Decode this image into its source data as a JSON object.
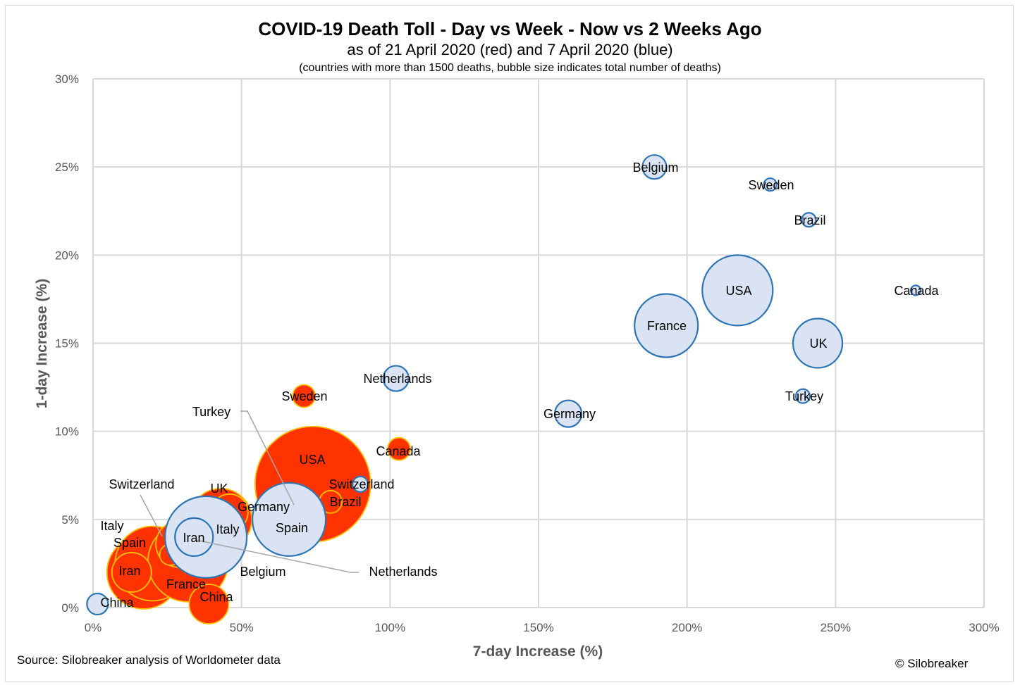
{
  "chart_data": {
    "type": "bubble",
    "title": "COVID-19 Death Toll - Day vs Week - Now vs 2 Weeks Ago",
    "subtitle": "as of 21 April 2020 (red) and 7 April 2020 (blue)",
    "note": "(countries with more than 1500 deaths, bubble size indicates total number of deaths)",
    "xlabel": "7-day Increase (%)",
    "ylabel": "1-day Increase (%)",
    "xlim": [
      0,
      300
    ],
    "ylim": [
      0,
      30
    ],
    "x_ticks": [
      0,
      50,
      100,
      150,
      200,
      250,
      300
    ],
    "y_ticks": [
      0,
      5,
      10,
      15,
      20,
      25,
      30
    ],
    "x_tick_labels": [
      "0%",
      "50%",
      "100%",
      "150%",
      "200%",
      "250%",
      "300%"
    ],
    "y_tick_labels": [
      "0%",
      "5%",
      "10%",
      "15%",
      "20%",
      "25%",
      "30%"
    ],
    "grid": true,
    "colors": {
      "red_fill": "#ff3300",
      "red_stroke": "#ffc000",
      "blue_fill": "#dae3f3",
      "blue_stroke": "#2e75b6",
      "grid": "#d9d9d9"
    },
    "series": [
      {
        "date": "21 April 2020",
        "color": "red",
        "points": [
          {
            "name": "USA",
            "x": 74,
            "y": 7,
            "r": 82
          },
          {
            "name": "Italy",
            "x": 17,
            "y": 2,
            "r": 52
          },
          {
            "name": "Spain",
            "x": 20,
            "y": 2.5,
            "r": 53
          },
          {
            "name": "France",
            "x": 32,
            "y": 2.6,
            "r": 57
          },
          {
            "name": "UK",
            "x": 43,
            "y": 5,
            "r": 44
          },
          {
            "name": "Belgium",
            "x": 29,
            "y": 3.6,
            "r": 33
          },
          {
            "name": "Germany",
            "x": 46,
            "y": 5.4,
            "r": 26
          },
          {
            "name": "Iran",
            "x": 13,
            "y": 2,
            "r": 28
          },
          {
            "name": "China",
            "x": 39,
            "y": 0.2,
            "r": 28
          },
          {
            "name": "Netherlands",
            "x": 26,
            "y": 3,
            "r": 15
          },
          {
            "name": "Brazil",
            "x": 80,
            "y": 6,
            "r": 16
          },
          {
            "name": "Turkey",
            "x": 68,
            "y": 4.8,
            "r": 16
          },
          {
            "name": "Switzerland",
            "x": 33,
            "y": 3,
            "r": 12
          },
          {
            "name": "Canada",
            "x": 103,
            "y": 9,
            "r": 16
          },
          {
            "name": "Sweden",
            "x": 71,
            "y": 12,
            "r": 16
          }
        ]
      },
      {
        "date": "7 April 2020",
        "color": "blue",
        "points": [
          {
            "name": "Spain",
            "x": 66,
            "y": 5,
            "r": 52
          },
          {
            "name": "Italy",
            "x": 38,
            "y": 4,
            "r": 58
          },
          {
            "name": "Iran",
            "x": 34,
            "y": 4,
            "r": 27
          },
          {
            "name": "China",
            "x": 1.5,
            "y": 0.2,
            "r": 15
          },
          {
            "name": "Switzerland",
            "x": 90,
            "y": 7,
            "r": 11
          },
          {
            "name": "Netherlands",
            "x": 102,
            "y": 13,
            "r": 18
          },
          {
            "name": "Germany",
            "x": 160,
            "y": 11,
            "r": 19
          },
          {
            "name": "Belgium",
            "x": 189,
            "y": 25,
            "r": 17
          },
          {
            "name": "Sweden",
            "x": 228,
            "y": 24,
            "r": 9
          },
          {
            "name": "Brazil",
            "x": 241,
            "y": 22,
            "r": 10
          },
          {
            "name": "Canada",
            "x": 277,
            "y": 18,
            "r": 7
          },
          {
            "name": "USA",
            "x": 217,
            "y": 18,
            "r": 50
          },
          {
            "name": "France",
            "x": 193,
            "y": 16,
            "r": 45
          },
          {
            "name": "UK",
            "x": 244,
            "y": 15,
            "r": 35
          },
          {
            "name": "Turkey",
            "x": 239,
            "y": 12,
            "r": 10
          }
        ]
      }
    ],
    "labels": [
      {
        "text": "Italy"
      },
      {
        "text": "Spain"
      },
      {
        "text": "Iran"
      },
      {
        "text": "France"
      },
      {
        "text": "China"
      },
      {
        "text": "China"
      },
      {
        "text": "Belgium"
      },
      {
        "text": "UK"
      },
      {
        "text": "Germany"
      },
      {
        "text": "Italy"
      },
      {
        "text": "Iran"
      },
      {
        "text": "Spain"
      },
      {
        "text": "USA"
      },
      {
        "text": "Brazil"
      },
      {
        "text": "Switzerland"
      },
      {
        "text": "Canada"
      },
      {
        "text": "Sweden"
      },
      {
        "text": "Netherlands"
      },
      {
        "text": "Germany"
      },
      {
        "text": "Belgium"
      },
      {
        "text": "Sweden"
      },
      {
        "text": "Brazil"
      },
      {
        "text": "USA"
      },
      {
        "text": "France"
      },
      {
        "text": "UK"
      },
      {
        "text": "Turkey"
      },
      {
        "text": "Canada"
      },
      {
        "text": "Turkey"
      },
      {
        "text": "Switzerland"
      },
      {
        "text": "Netherlands"
      }
    ],
    "source": "Source: Silobreaker analysis of Worldometer data",
    "copyright": "© Silobreaker"
  }
}
